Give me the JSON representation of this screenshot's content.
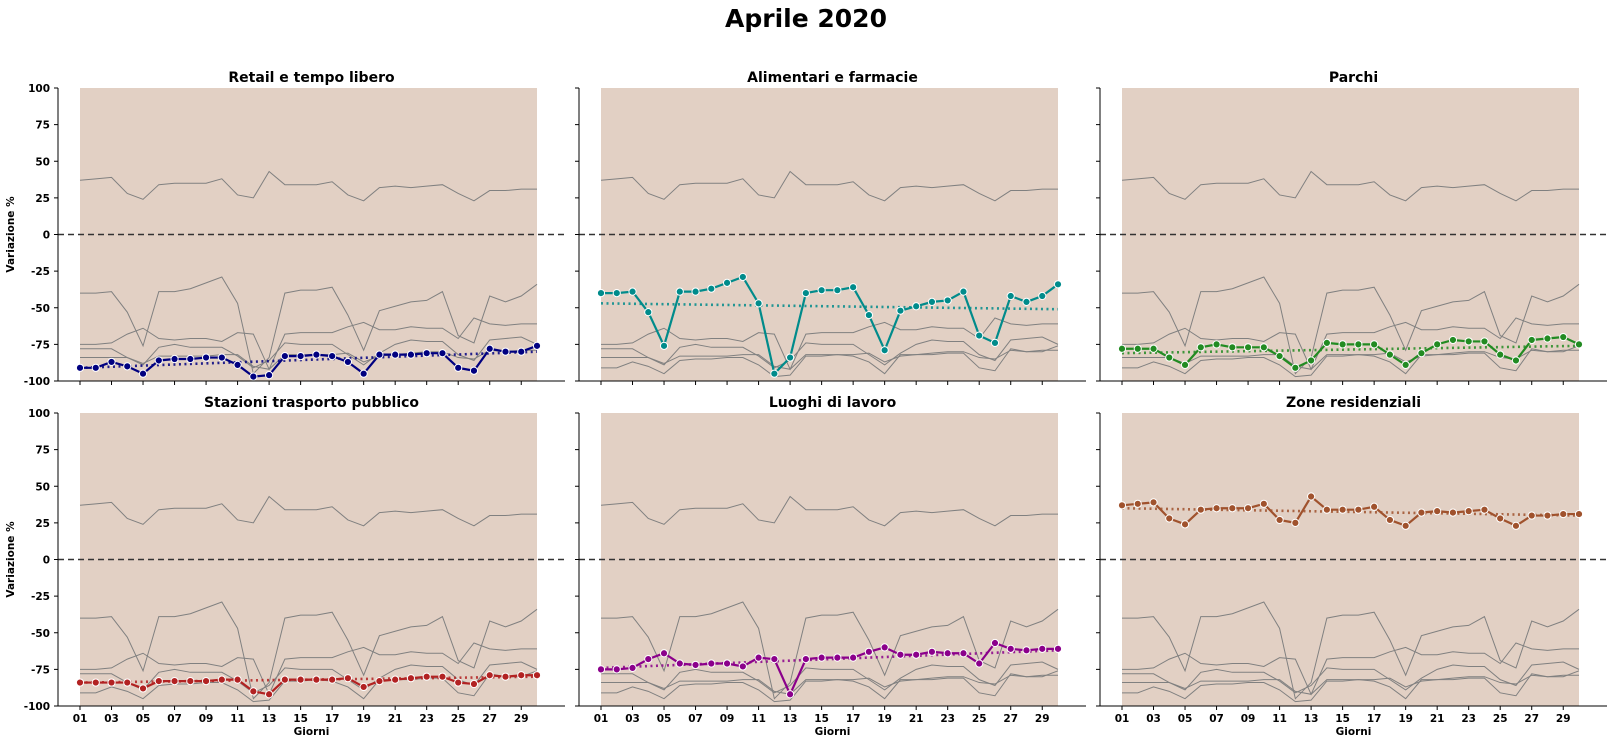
{
  "figure": {
    "title": "Aprile 2020",
    "background_color": "#e2d0c4",
    "context_line_color": "#808080",
    "zero_line_color": "#333333"
  },
  "chart_data": [
    {
      "type": "line",
      "title": "Retail e tempo libero",
      "xlabel": "",
      "ylabel": "Variazione %",
      "ylim": [
        -100,
        100
      ],
      "yticks": [
        -100,
        -75,
        -50,
        -25,
        0,
        25,
        50,
        75,
        100
      ],
      "x": [
        "01",
        "02",
        "03",
        "04",
        "05",
        "06",
        "07",
        "08",
        "09",
        "10",
        "11",
        "12",
        "13",
        "14",
        "15",
        "16",
        "17",
        "18",
        "19",
        "20",
        "21",
        "22",
        "23",
        "24",
        "25",
        "26",
        "27",
        "28",
        "29",
        "30"
      ],
      "xtick_labels": [
        "01",
        "03",
        "05",
        "07",
        "09",
        "11",
        "13",
        "15",
        "17",
        "19",
        "21",
        "23",
        "25",
        "27",
        "29"
      ],
      "color": "#000080",
      "values": [
        -91,
        -91,
        -87,
        -90,
        -95,
        -86,
        -85,
        -85,
        -84,
        -84,
        -89,
        -97,
        -96,
        -83,
        -83,
        -82,
        -83,
        -87,
        -95,
        -82,
        -82,
        -82,
        -81,
        -81,
        -91,
        -93,
        -78,
        -80,
        -80,
        -76
      ],
      "trend": [
        -91,
        -80
      ]
    },
    {
      "type": "line",
      "title": "Alimentari e farmacie",
      "xlabel": "",
      "ylabel": "",
      "ylim": [
        -100,
        100
      ],
      "yticks": [
        -100,
        -75,
        -50,
        -25,
        0,
        25,
        50,
        75,
        100
      ],
      "x": [
        "01",
        "02",
        "03",
        "04",
        "05",
        "06",
        "07",
        "08",
        "09",
        "10",
        "11",
        "12",
        "13",
        "14",
        "15",
        "16",
        "17",
        "18",
        "19",
        "20",
        "21",
        "22",
        "23",
        "24",
        "25",
        "26",
        "27",
        "28",
        "29",
        "30"
      ],
      "xtick_labels": [
        "01",
        "03",
        "05",
        "07",
        "09",
        "11",
        "13",
        "15",
        "17",
        "19",
        "21",
        "23",
        "25",
        "27",
        "29"
      ],
      "color": "#008b8b",
      "values": [
        -40,
        -40,
        -39,
        -53,
        -76,
        -39,
        -39,
        -37,
        -33,
        -29,
        -47,
        -95,
        -84,
        -40,
        -38,
        -38,
        -36,
        -55,
        -79,
        -52,
        -49,
        -46,
        -45,
        -39,
        -69,
        -74,
        -42,
        -46,
        -42,
        -34
      ],
      "trend": [
        -47,
        -51
      ]
    },
    {
      "type": "line",
      "title": "Parchi",
      "xlabel": "",
      "ylabel": "",
      "ylim": [
        -100,
        100
      ],
      "yticks": [
        -100,
        -75,
        -50,
        -25,
        0,
        25,
        50,
        75,
        100
      ],
      "x": [
        "01",
        "02",
        "03",
        "04",
        "05",
        "06",
        "07",
        "08",
        "09",
        "10",
        "11",
        "12",
        "13",
        "14",
        "15",
        "16",
        "17",
        "18",
        "19",
        "20",
        "21",
        "22",
        "23",
        "24",
        "25",
        "26",
        "27",
        "28",
        "29",
        "30"
      ],
      "xtick_labels": [
        "01",
        "03",
        "05",
        "07",
        "09",
        "11",
        "13",
        "15",
        "17",
        "19",
        "21",
        "23",
        "25",
        "27",
        "29"
      ],
      "color": "#228b22",
      "values": [
        -78,
        -78,
        -78,
        -84,
        -89,
        -77,
        -75,
        -77,
        -77,
        -77,
        -83,
        -91,
        -86,
        -74,
        -75,
        -75,
        -75,
        -82,
        -89,
        -81,
        -75,
        -72,
        -73,
        -73,
        -82,
        -86,
        -72,
        -71,
        -70,
        -75
      ],
      "trend": [
        -81,
        -76
      ]
    },
    {
      "type": "line",
      "title": "Stazioni trasporto pubblico",
      "xlabel": "Giorni",
      "ylabel": "Variazione %",
      "ylim": [
        -100,
        100
      ],
      "yticks": [
        -100,
        -75,
        -50,
        -25,
        0,
        25,
        50,
        75,
        100
      ],
      "x": [
        "01",
        "02",
        "03",
        "04",
        "05",
        "06",
        "07",
        "08",
        "09",
        "10",
        "11",
        "12",
        "13",
        "14",
        "15",
        "16",
        "17",
        "18",
        "19",
        "20",
        "21",
        "22",
        "23",
        "24",
        "25",
        "26",
        "27",
        "28",
        "29",
        "30"
      ],
      "xtick_labels": [
        "01",
        "03",
        "05",
        "07",
        "09",
        "11",
        "13",
        "15",
        "17",
        "19",
        "21",
        "23",
        "25",
        "27",
        "29"
      ],
      "color": "#b22222",
      "values": [
        -84,
        -84,
        -84,
        -84,
        -88,
        -83,
        -83,
        -83,
        -83,
        -82,
        -82,
        -90,
        -92,
        -82,
        -82,
        -82,
        -82,
        -81,
        -87,
        -83,
        -82,
        -81,
        -80,
        -80,
        -84,
        -85,
        -79,
        -80,
        -79,
        -79
      ],
      "trend": [
        -84,
        -80
      ]
    },
    {
      "type": "line",
      "title": "Luoghi di lavoro",
      "xlabel": "Giorni",
      "ylabel": "",
      "ylim": [
        -100,
        100
      ],
      "yticks": [
        -100,
        -75,
        -50,
        -25,
        0,
        25,
        50,
        75,
        100
      ],
      "x": [
        "01",
        "02",
        "03",
        "04",
        "05",
        "06",
        "07",
        "08",
        "09",
        "10",
        "11",
        "12",
        "13",
        "14",
        "15",
        "16",
        "17",
        "18",
        "19",
        "20",
        "21",
        "22",
        "23",
        "24",
        "25",
        "26",
        "27",
        "28",
        "29",
        "30"
      ],
      "xtick_labels": [
        "01",
        "03",
        "05",
        "07",
        "09",
        "11",
        "13",
        "15",
        "17",
        "19",
        "21",
        "23",
        "25",
        "27",
        "29"
      ],
      "color": "#8b008b",
      "values": [
        -75,
        -75,
        -74,
        -68,
        -64,
        -71,
        -72,
        -71,
        -71,
        -73,
        -67,
        -68,
        -92,
        -68,
        -67,
        -67,
        -67,
        -63,
        -60,
        -65,
        -65,
        -63,
        -64,
        -64,
        -71,
        -57,
        -61,
        -62,
        -61,
        -61
      ],
      "trend": [
        -74,
        -62
      ]
    },
    {
      "type": "line",
      "title": "Zone residenziali",
      "xlabel": "Giorni",
      "ylabel": "",
      "ylim": [
        -100,
        100
      ],
      "yticks": [
        -100,
        -75,
        -50,
        -25,
        0,
        25,
        50,
        75,
        100
      ],
      "x": [
        "01",
        "02",
        "03",
        "04",
        "05",
        "06",
        "07",
        "08",
        "09",
        "10",
        "11",
        "12",
        "13",
        "14",
        "15",
        "16",
        "17",
        "18",
        "19",
        "20",
        "21",
        "22",
        "23",
        "24",
        "25",
        "26",
        "27",
        "28",
        "29",
        "30"
      ],
      "xtick_labels": [
        "01",
        "03",
        "05",
        "07",
        "09",
        "11",
        "13",
        "15",
        "17",
        "19",
        "21",
        "23",
        "25",
        "27",
        "29"
      ],
      "color": "#a0522d",
      "values": [
        37,
        38,
        39,
        28,
        24,
        34,
        35,
        35,
        35,
        38,
        27,
        25,
        43,
        34,
        34,
        34,
        36,
        27,
        23,
        32,
        33,
        32,
        33,
        34,
        28,
        23,
        30,
        30,
        31,
        31
      ],
      "trend": [
        35,
        30
      ]
    }
  ]
}
